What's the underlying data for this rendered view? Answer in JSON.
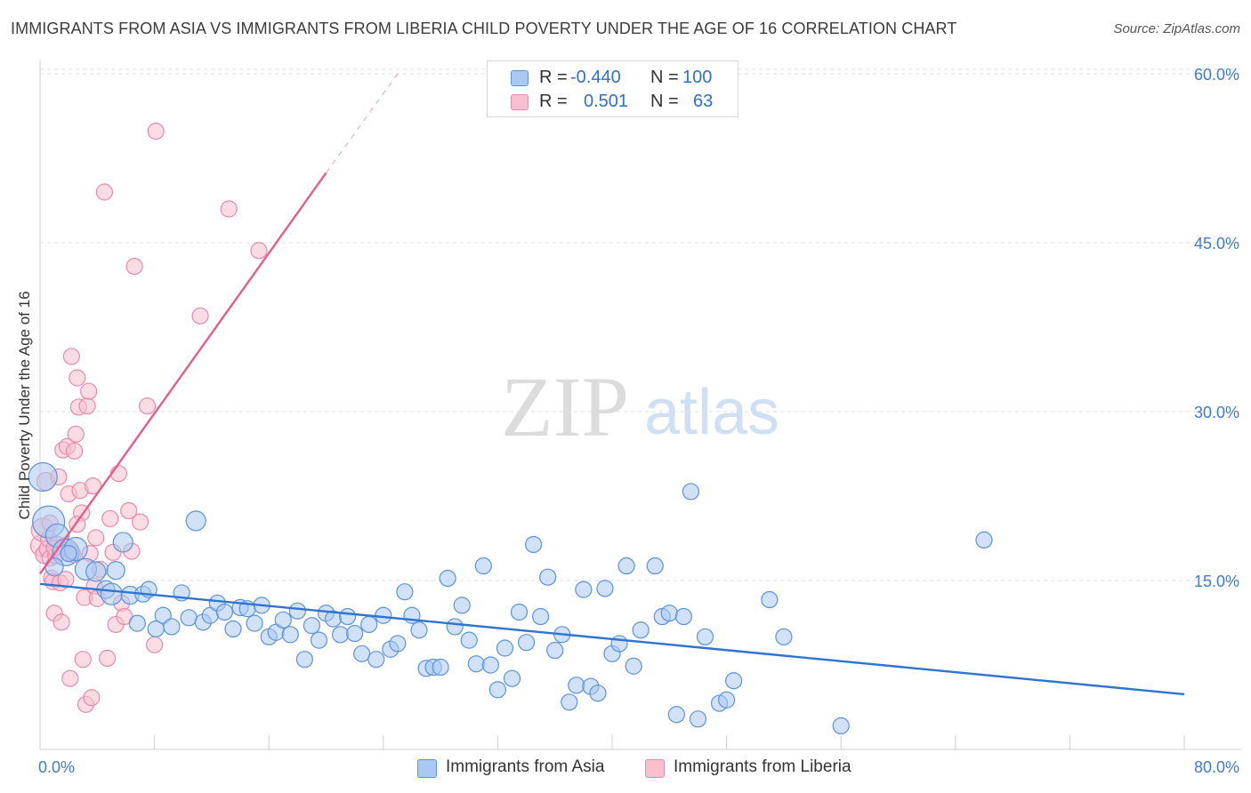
{
  "header": {
    "title": "IMMIGRANTS FROM ASIA VS IMMIGRANTS FROM LIBERIA CHILD POVERTY UNDER THE AGE OF 16 CORRELATION CHART",
    "source": "Source: ZipAtlas.com"
  },
  "legend": {
    "rows": [
      {
        "r_label": "R =",
        "r_value": "-0.440",
        "n_label": "N =",
        "n_value": "100"
      },
      {
        "r_label": "R =",
        "r_value": "0.501",
        "n_label": "N =",
        "n_value": "63"
      }
    ]
  },
  "watermark": {
    "zip": "ZIP",
    "atlas": "atlas"
  },
  "colors": {
    "asia_fill": "#a9c8f2",
    "asia_stroke": "#5b93dd",
    "asia_line": "#2f74d0",
    "liberia_fill": "#f7bfd0",
    "liberia_stroke": "#e98aaa",
    "liberia_line": "#e45d8b",
    "tick_label": "#3e7bd1",
    "grid": "#dcdcdc"
  },
  "chart_data": {
    "type": "scatter",
    "title": "IMMIGRANTS FROM ASIA VS IMMIGRANTS FROM LIBERIA CHILD POVERTY UNDER THE AGE OF 16 CORRELATION CHART",
    "xlabel": "",
    "ylabel": "Child Poverty Under the Age of 16",
    "xlim": [
      0,
      80
    ],
    "ylim": [
      0,
      62
    ],
    "x_tick_labels": [
      "0.0%",
      "80.0%"
    ],
    "y_ticks": [
      15,
      30,
      45,
      60
    ],
    "y_tick_labels": [
      "15.0%",
      "30.0%",
      "45.0%",
      "60.0%"
    ],
    "grid": true,
    "legend_placement": "top-center",
    "series": [
      {
        "name": "Immigrants from Asia",
        "R": -0.44,
        "N": 100,
        "trend": {
          "x": [
            0,
            80
          ],
          "y": [
            14.7,
            4.9
          ]
        },
        "points": [
          [
            0.2,
            24.2,
            16
          ],
          [
            0.6,
            20.2,
            18
          ],
          [
            1.2,
            19.0,
            13
          ],
          [
            1.8,
            17.5,
            15
          ],
          [
            2.5,
            17.8,
            13
          ],
          [
            3.2,
            16.0,
            12
          ],
          [
            3.9,
            15.8,
            11
          ],
          [
            4.6,
            14.2,
            10
          ],
          [
            5.0,
            13.8,
            12
          ],
          [
            5.3,
            15.9,
            10
          ],
          [
            5.8,
            18.4,
            11
          ],
          [
            6.3,
            13.7,
            10
          ],
          [
            6.8,
            11.2,
            9
          ],
          [
            7.2,
            13.8,
            9
          ],
          [
            7.6,
            14.2,
            9
          ],
          [
            8.1,
            10.7,
            9
          ],
          [
            8.6,
            11.9,
            9
          ],
          [
            9.2,
            10.9,
            9
          ],
          [
            9.9,
            13.9,
            9
          ],
          [
            10.4,
            11.7,
            9
          ],
          [
            10.9,
            20.3,
            11
          ],
          [
            11.4,
            11.3,
            9
          ],
          [
            11.9,
            11.9,
            9
          ],
          [
            12.4,
            13.0,
            9
          ],
          [
            12.9,
            12.2,
            9
          ],
          [
            13.5,
            10.7,
            9
          ],
          [
            14.0,
            12.6,
            9
          ],
          [
            14.5,
            12.5,
            9
          ],
          [
            15.0,
            11.2,
            9
          ],
          [
            15.5,
            12.8,
            9
          ],
          [
            16.0,
            10.0,
            9
          ],
          [
            16.5,
            10.4,
            9
          ],
          [
            17.0,
            11.5,
            9
          ],
          [
            17.5,
            10.2,
            9
          ],
          [
            18.0,
            12.3,
            9
          ],
          [
            18.5,
            8.0,
            9
          ],
          [
            19.0,
            11.0,
            9
          ],
          [
            19.5,
            9.7,
            9
          ],
          [
            20.0,
            12.1,
            9
          ],
          [
            20.5,
            11.6,
            9
          ],
          [
            21.0,
            10.2,
            9
          ],
          [
            21.5,
            11.8,
            9
          ],
          [
            22.0,
            10.3,
            9
          ],
          [
            22.5,
            8.5,
            9
          ],
          [
            23.0,
            11.1,
            9
          ],
          [
            23.5,
            8.0,
            9
          ],
          [
            24.0,
            11.9,
            9
          ],
          [
            24.5,
            8.9,
            9
          ],
          [
            25.0,
            9.4,
            9
          ],
          [
            25.5,
            14.0,
            9
          ],
          [
            26.0,
            11.9,
            9
          ],
          [
            26.5,
            10.6,
            9
          ],
          [
            27.0,
            7.2,
            9
          ],
          [
            27.5,
            7.3,
            9
          ],
          [
            28.0,
            7.3,
            9
          ],
          [
            28.5,
            15.2,
            9
          ],
          [
            29.0,
            10.9,
            9
          ],
          [
            29.5,
            12.8,
            9
          ],
          [
            30.0,
            9.7,
            9
          ],
          [
            30.5,
            7.6,
            9
          ],
          [
            31.0,
            16.3,
            9
          ],
          [
            31.5,
            7.5,
            9
          ],
          [
            32.0,
            5.3,
            9
          ],
          [
            32.5,
            9.0,
            9
          ],
          [
            33.0,
            6.3,
            9
          ],
          [
            33.5,
            12.2,
            9
          ],
          [
            34.0,
            9.5,
            9
          ],
          [
            34.5,
            18.2,
            9
          ],
          [
            35.0,
            11.8,
            9
          ],
          [
            35.5,
            15.3,
            9
          ],
          [
            36.0,
            8.8,
            9
          ],
          [
            36.5,
            10.2,
            9
          ],
          [
            37.0,
            4.2,
            9
          ],
          [
            37.5,
            5.7,
            9
          ],
          [
            38.0,
            14.2,
            9
          ],
          [
            38.5,
            5.6,
            9
          ],
          [
            39.0,
            5.0,
            9
          ],
          [
            39.5,
            14.3,
            9
          ],
          [
            40.0,
            8.5,
            9
          ],
          [
            40.5,
            9.4,
            9
          ],
          [
            41.0,
            16.3,
            9
          ],
          [
            41.5,
            7.4,
            9
          ],
          [
            42.0,
            10.6,
            9
          ],
          [
            43.0,
            16.3,
            9
          ],
          [
            43.5,
            11.8,
            9
          ],
          [
            44.0,
            12.1,
            9
          ],
          [
            44.5,
            3.1,
            9
          ],
          [
            45.0,
            11.8,
            9
          ],
          [
            45.5,
            22.9,
            9
          ],
          [
            46.0,
            2.7,
            9
          ],
          [
            46.5,
            10.0,
            9
          ],
          [
            47.5,
            4.1,
            9
          ],
          [
            48.0,
            4.4,
            9
          ],
          [
            48.5,
            6.1,
            9
          ],
          [
            51.0,
            13.3,
            9
          ],
          [
            52.0,
            10.0,
            9
          ],
          [
            56.0,
            2.1,
            9
          ],
          [
            66.0,
            18.6,
            9
          ],
          [
            1.0,
            16.2,
            10
          ],
          [
            2.0,
            17.4,
            9
          ]
        ]
      },
      {
        "name": "Immigrants from Liberia",
        "R": 0.501,
        "N": 63,
        "trend": {
          "x": [
            0,
            20
          ],
          "y": [
            15.6,
            51.2
          ],
          "dashed_to": {
            "x": 25,
            "y": 60
          }
        },
        "points": [
          [
            0.1,
            18.1,
            12
          ],
          [
            0.2,
            19.5,
            13
          ],
          [
            0.3,
            17.3,
            10
          ],
          [
            0.4,
            23.8,
            10
          ],
          [
            0.5,
            17.8,
            9
          ],
          [
            0.6,
            18.7,
            9
          ],
          [
            0.7,
            17.0,
            9
          ],
          [
            0.8,
            15.2,
            9
          ],
          [
            0.9,
            14.9,
            9
          ],
          [
            1.0,
            12.1,
            9
          ],
          [
            1.1,
            17.2,
            9
          ],
          [
            1.2,
            18.2,
            9
          ],
          [
            1.3,
            24.2,
            9
          ],
          [
            1.4,
            14.8,
            9
          ],
          [
            1.5,
            11.3,
            9
          ],
          [
            1.6,
            26.6,
            9
          ],
          [
            1.7,
            18.1,
            9
          ],
          [
            1.8,
            15.1,
            9
          ],
          [
            1.9,
            26.9,
            9
          ],
          [
            2.0,
            22.7,
            9
          ],
          [
            2.1,
            17.6,
            9
          ],
          [
            2.2,
            34.9,
            9
          ],
          [
            2.3,
            17.3,
            9
          ],
          [
            2.4,
            26.5,
            9
          ],
          [
            2.5,
            28.0,
            9
          ],
          [
            2.6,
            33.0,
            9
          ],
          [
            2.7,
            30.4,
            9
          ],
          [
            2.8,
            23.0,
            9
          ],
          [
            2.9,
            21.0,
            9
          ],
          [
            3.0,
            8.0,
            9
          ],
          [
            3.1,
            13.5,
            9
          ],
          [
            3.2,
            4.0,
            9
          ],
          [
            3.3,
            30.5,
            9
          ],
          [
            3.4,
            31.8,
            9
          ],
          [
            3.5,
            17.4,
            9
          ],
          [
            3.6,
            4.6,
            9
          ],
          [
            3.7,
            23.4,
            9
          ],
          [
            3.8,
            14.5,
            9
          ],
          [
            3.9,
            18.8,
            9
          ],
          [
            4.0,
            13.4,
            9
          ],
          [
            4.2,
            16.0,
            9
          ],
          [
            4.5,
            49.5,
            9
          ],
          [
            4.7,
            8.1,
            9
          ],
          [
            4.9,
            20.5,
            9
          ],
          [
            5.1,
            17.5,
            9
          ],
          [
            5.3,
            11.1,
            9
          ],
          [
            5.5,
            24.5,
            9
          ],
          [
            5.7,
            13.0,
            9
          ],
          [
            5.9,
            11.8,
            9
          ],
          [
            6.2,
            21.2,
            9
          ],
          [
            6.4,
            17.6,
            9
          ],
          [
            6.6,
            42.9,
            9
          ],
          [
            7.0,
            20.2,
            9
          ],
          [
            7.5,
            30.5,
            9
          ],
          [
            8.0,
            9.3,
            9
          ],
          [
            8.1,
            54.9,
            9
          ],
          [
            11.2,
            38.5,
            9
          ],
          [
            13.2,
            48.0,
            9
          ],
          [
            15.3,
            44.3,
            9
          ],
          [
            2.1,
            6.3,
            9
          ],
          [
            1.0,
            17.9,
            9
          ],
          [
            0.7,
            20.1,
            9
          ],
          [
            2.6,
            20.0,
            9
          ]
        ]
      }
    ]
  },
  "bottom_legend": [
    {
      "label": "Immigrants from Asia"
    },
    {
      "label": "Immigrants from Liberia"
    }
  ]
}
